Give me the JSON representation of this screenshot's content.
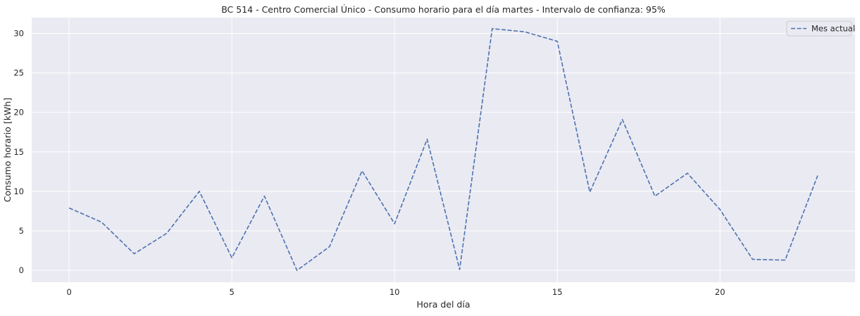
{
  "chart_data": {
    "type": "line",
    "title": "BC 514 - Centro Comercial Único - Consumo horario para el día martes - Intervalo de confianza: 95%",
    "xlabel": "Hora del día",
    "ylabel": "Consumo horario [kWh]",
    "xlim": [
      -1.15,
      24.15
    ],
    "ylim": [
      -1.5,
      32.0
    ],
    "xticks": [
      0,
      5,
      10,
      15,
      20
    ],
    "yticks": [
      0,
      5,
      10,
      15,
      20,
      25,
      30
    ],
    "grid": true,
    "legend_position": "top-right",
    "series": [
      {
        "name": "Mes actual",
        "color": "#4c72b0",
        "line_style": "dashed",
        "x": [
          0,
          1,
          2,
          3,
          4,
          5,
          6,
          7,
          8,
          9,
          10,
          11,
          12,
          13,
          14,
          15,
          16,
          17,
          18,
          19,
          20,
          21,
          22,
          23
        ],
        "values": [
          7.9,
          6.1,
          2.1,
          4.7,
          10.0,
          1.6,
          9.4,
          0.0,
          3.0,
          12.6,
          5.9,
          16.6,
          0.1,
          30.6,
          30.2,
          29.0,
          9.9,
          19.1,
          9.4,
          12.3,
          7.7,
          1.4,
          1.3,
          12.0
        ]
      }
    ]
  },
  "colors": {
    "plot_background": "#eaeaf2",
    "grid": "#ffffff",
    "page_background": "#ffffff"
  }
}
